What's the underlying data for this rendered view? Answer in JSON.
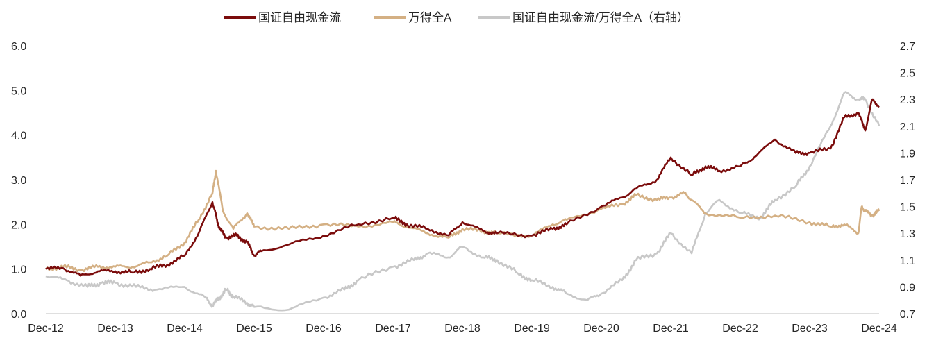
{
  "chart_data": {
    "type": "line",
    "title": "",
    "xlabel": "",
    "ylabel": "",
    "x_ticks": [
      "Dec-12",
      "Dec-13",
      "Dec-14",
      "Dec-15",
      "Dec-16",
      "Dec-17",
      "Dec-18",
      "Dec-19",
      "Dec-20",
      "Dec-21",
      "Dec-22",
      "Dec-23",
      "Dec-24"
    ],
    "y_left": {
      "ylim": [
        0.0,
        6.0
      ],
      "ticks": [
        "0.0",
        "1.0",
        "2.0",
        "3.0",
        "4.0",
        "5.0",
        "6.0"
      ]
    },
    "y_right": {
      "ylim": [
        0.7,
        2.7
      ],
      "ticks": [
        "0.7",
        "0.9",
        "1.1",
        "1.3",
        "1.5",
        "1.7",
        "1.9",
        "2.1",
        "2.3",
        "2.5",
        "2.7"
      ]
    },
    "grid": false,
    "legend_position": "top",
    "series": [
      {
        "name": "国证自由现金流",
        "axis": "left",
        "color": "#7b0c0c",
        "x": [
          0,
          0.25,
          0.5,
          0.75,
          1,
          1.25,
          1.5,
          1.75,
          2,
          2.2,
          2.4,
          2.45,
          2.5,
          2.6,
          2.75,
          2.9,
          3,
          3.1,
          3.5,
          4,
          4.5,
          5,
          5.2,
          5.5,
          5.8,
          6,
          6.3,
          6.5,
          7,
          7.3,
          7.5,
          8,
          8.3,
          8.5,
          8.8,
          9,
          9.3,
          9.5,
          9.7,
          10,
          10.2,
          10.5,
          10.8,
          11,
          11.3,
          11.5,
          11.7,
          11.8,
          11.9,
          12
        ],
        "values": [
          1.0,
          1.02,
          0.85,
          0.95,
          0.95,
          0.92,
          1.0,
          1.1,
          1.3,
          1.8,
          2.5,
          2.2,
          1.9,
          1.7,
          1.75,
          1.6,
          1.3,
          1.4,
          1.55,
          1.75,
          2.0,
          2.15,
          2.0,
          1.9,
          1.75,
          2.05,
          1.85,
          1.8,
          1.75,
          1.9,
          2.0,
          2.4,
          2.6,
          2.8,
          3.0,
          3.5,
          3.1,
          3.3,
          3.2,
          3.3,
          3.5,
          3.9,
          3.6,
          3.6,
          3.7,
          4.4,
          4.5,
          4.1,
          4.8,
          4.65
        ]
      },
      {
        "name": "万得全A",
        "axis": "left",
        "color": "#d4b084",
        "x": [
          0,
          0.25,
          0.5,
          0.75,
          1,
          1.25,
          1.5,
          1.75,
          2,
          2.2,
          2.4,
          2.45,
          2.55,
          2.7,
          2.9,
          3,
          3.5,
          4,
          4.5,
          5,
          5.2,
          5.5,
          5.8,
          6,
          6.3,
          6.5,
          7,
          7.3,
          7.5,
          8,
          8.3,
          8.5,
          8.8,
          9,
          9.2,
          9.3,
          9.5,
          10,
          10.5,
          11,
          11.3,
          11.5,
          11.7,
          11.75,
          11.8,
          11.9,
          12
        ],
        "values": [
          1.0,
          1.05,
          0.98,
          1.05,
          1.05,
          1.05,
          1.15,
          1.3,
          1.6,
          2.1,
          2.7,
          3.2,
          2.3,
          1.9,
          2.25,
          1.95,
          1.9,
          2.0,
          1.95,
          2.05,
          1.95,
          1.8,
          1.7,
          1.9,
          1.85,
          1.8,
          1.75,
          2.0,
          2.1,
          2.35,
          2.45,
          2.65,
          2.55,
          2.6,
          2.7,
          2.55,
          2.25,
          2.15,
          2.2,
          2.05,
          1.95,
          2.0,
          1.8,
          2.4,
          2.3,
          2.2,
          2.3
        ]
      },
      {
        "name": "国证自由现金流/万得全A（右轴）",
        "axis": "right",
        "color": "#c8c8c8",
        "x": [
          0,
          0.3,
          0.6,
          0.8,
          1,
          1.3,
          1.6,
          2,
          2.3,
          2.4,
          2.5,
          2.6,
          2.7,
          2.9,
          3,
          3.5,
          4,
          4.3,
          4.5,
          5,
          5.3,
          5.5,
          5.8,
          6,
          6.3,
          6.5,
          6.8,
          7,
          7.3,
          7.5,
          7.8,
          8,
          8.3,
          8.5,
          8.8,
          9,
          9.3,
          9.5,
          9.7,
          10,
          10.3,
          10.5,
          10.8,
          11,
          11.3,
          11.5,
          11.7,
          11.8,
          12
        ],
        "values": [
          0.98,
          0.95,
          0.9,
          0.93,
          0.93,
          0.9,
          0.88,
          0.9,
          0.82,
          0.76,
          0.82,
          0.88,
          0.83,
          0.78,
          0.75,
          0.73,
          0.82,
          0.88,
          0.95,
          1.05,
          1.1,
          1.15,
          1.12,
          1.2,
          1.12,
          1.1,
          1.0,
          0.95,
          0.9,
          0.85,
          0.8,
          0.85,
          0.95,
          1.1,
          1.15,
          1.3,
          1.15,
          1.45,
          1.55,
          1.45,
          1.42,
          1.55,
          1.65,
          1.8,
          2.1,
          2.35,
          2.3,
          2.3,
          2.1
        ]
      }
    ]
  }
}
